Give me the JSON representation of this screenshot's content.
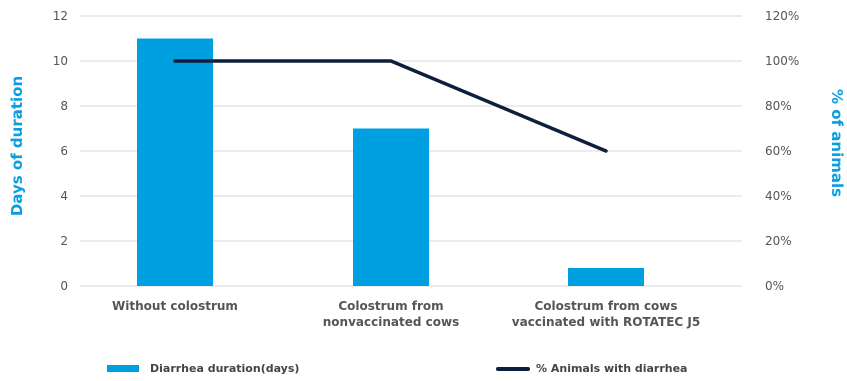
{
  "chart_data": {
    "type": "bar",
    "categories": [
      [
        "Without colostrum"
      ],
      [
        "Colostrum from",
        "nonvaccinated cows"
      ],
      [
        "Colostrum from cows",
        "vaccinated with ROTATEC J5"
      ]
    ],
    "series": [
      {
        "name": "Diarrhea duration(days)",
        "type": "bar",
        "axis": "left",
        "values": [
          11,
          7,
          0.8
        ],
        "color": "#009fdf"
      },
      {
        "name": "% Animals with diarrhea",
        "type": "line",
        "axis": "right",
        "values": [
          100,
          100,
          60
        ],
        "color": "#0e1f3e"
      }
    ],
    "ylabel": "Days of duration",
    "y2label": "% of animals",
    "ylim": [
      0,
      12
    ],
    "y2lim": [
      0,
      120
    ],
    "yticks": [
      "0",
      "2",
      "4",
      "6",
      "8",
      "10",
      "12"
    ],
    "y2ticks": [
      "0%",
      "20%",
      "40%",
      "60%",
      "80%",
      "100%",
      "120%"
    ],
    "grid": true,
    "legend_position": "bottom"
  }
}
